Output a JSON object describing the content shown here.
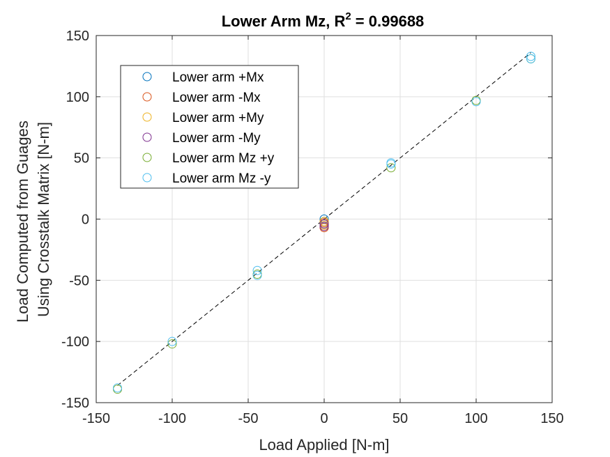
{
  "chart_data": {
    "type": "scatter",
    "title": "Lower Arm Mz, R",
    "title_sup": "2",
    "title_value": " = 0.99688",
    "xlabel": "Load Applied [N-m]",
    "ylabel": [
      "Load Computed from Guages",
      "Using Crosstalk Matrix [N-m]"
    ],
    "xlim": [
      -150,
      150
    ],
    "ylim": [
      -150,
      150
    ],
    "xticks": [
      -150,
      -100,
      -50,
      0,
      50,
      100,
      150
    ],
    "yticks": [
      -150,
      -100,
      -50,
      0,
      50,
      100,
      150
    ],
    "grid": true,
    "legend_position": "top-left",
    "fit_line": {
      "x": [
        -136,
        136
      ],
      "y": [
        -136,
        136
      ],
      "style": "dashed",
      "color": "#000000"
    },
    "series": [
      {
        "name": "Lower arm +Mx",
        "color": "#0072BD",
        "points": [
          [
            0,
            0
          ],
          [
            0,
            -2
          ],
          [
            0,
            -4
          ]
        ]
      },
      {
        "name": "Lower arm -Mx",
        "color": "#D95319",
        "points": [
          [
            0,
            -3
          ],
          [
            0,
            -6
          ],
          [
            0,
            -7
          ]
        ]
      },
      {
        "name": "Lower arm +My",
        "color": "#EDB120",
        "points": [
          [
            0,
            -2
          ],
          [
            0,
            -5
          ]
        ]
      },
      {
        "name": "Lower arm -My",
        "color": "#7E2F8E",
        "points": [
          [
            0,
            -4
          ],
          [
            0,
            -6
          ]
        ]
      },
      {
        "name": "Lower arm Mz +y",
        "color": "#77AC30",
        "points": [
          [
            -136,
            -139
          ],
          [
            -100,
            -102
          ],
          [
            -44,
            -45
          ],
          [
            44,
            42
          ],
          [
            100,
            97
          ],
          [
            136,
            131
          ]
        ]
      },
      {
        "name": "Lower arm Mz -y",
        "color": "#4DBEEE",
        "points": [
          [
            -136,
            -138
          ],
          [
            -100,
            -100
          ],
          [
            -44,
            -42
          ],
          [
            -44,
            -46
          ],
          [
            44,
            46
          ],
          [
            44,
            45
          ],
          [
            100,
            96
          ],
          [
            136,
            133
          ],
          [
            136,
            131
          ]
        ]
      }
    ]
  }
}
